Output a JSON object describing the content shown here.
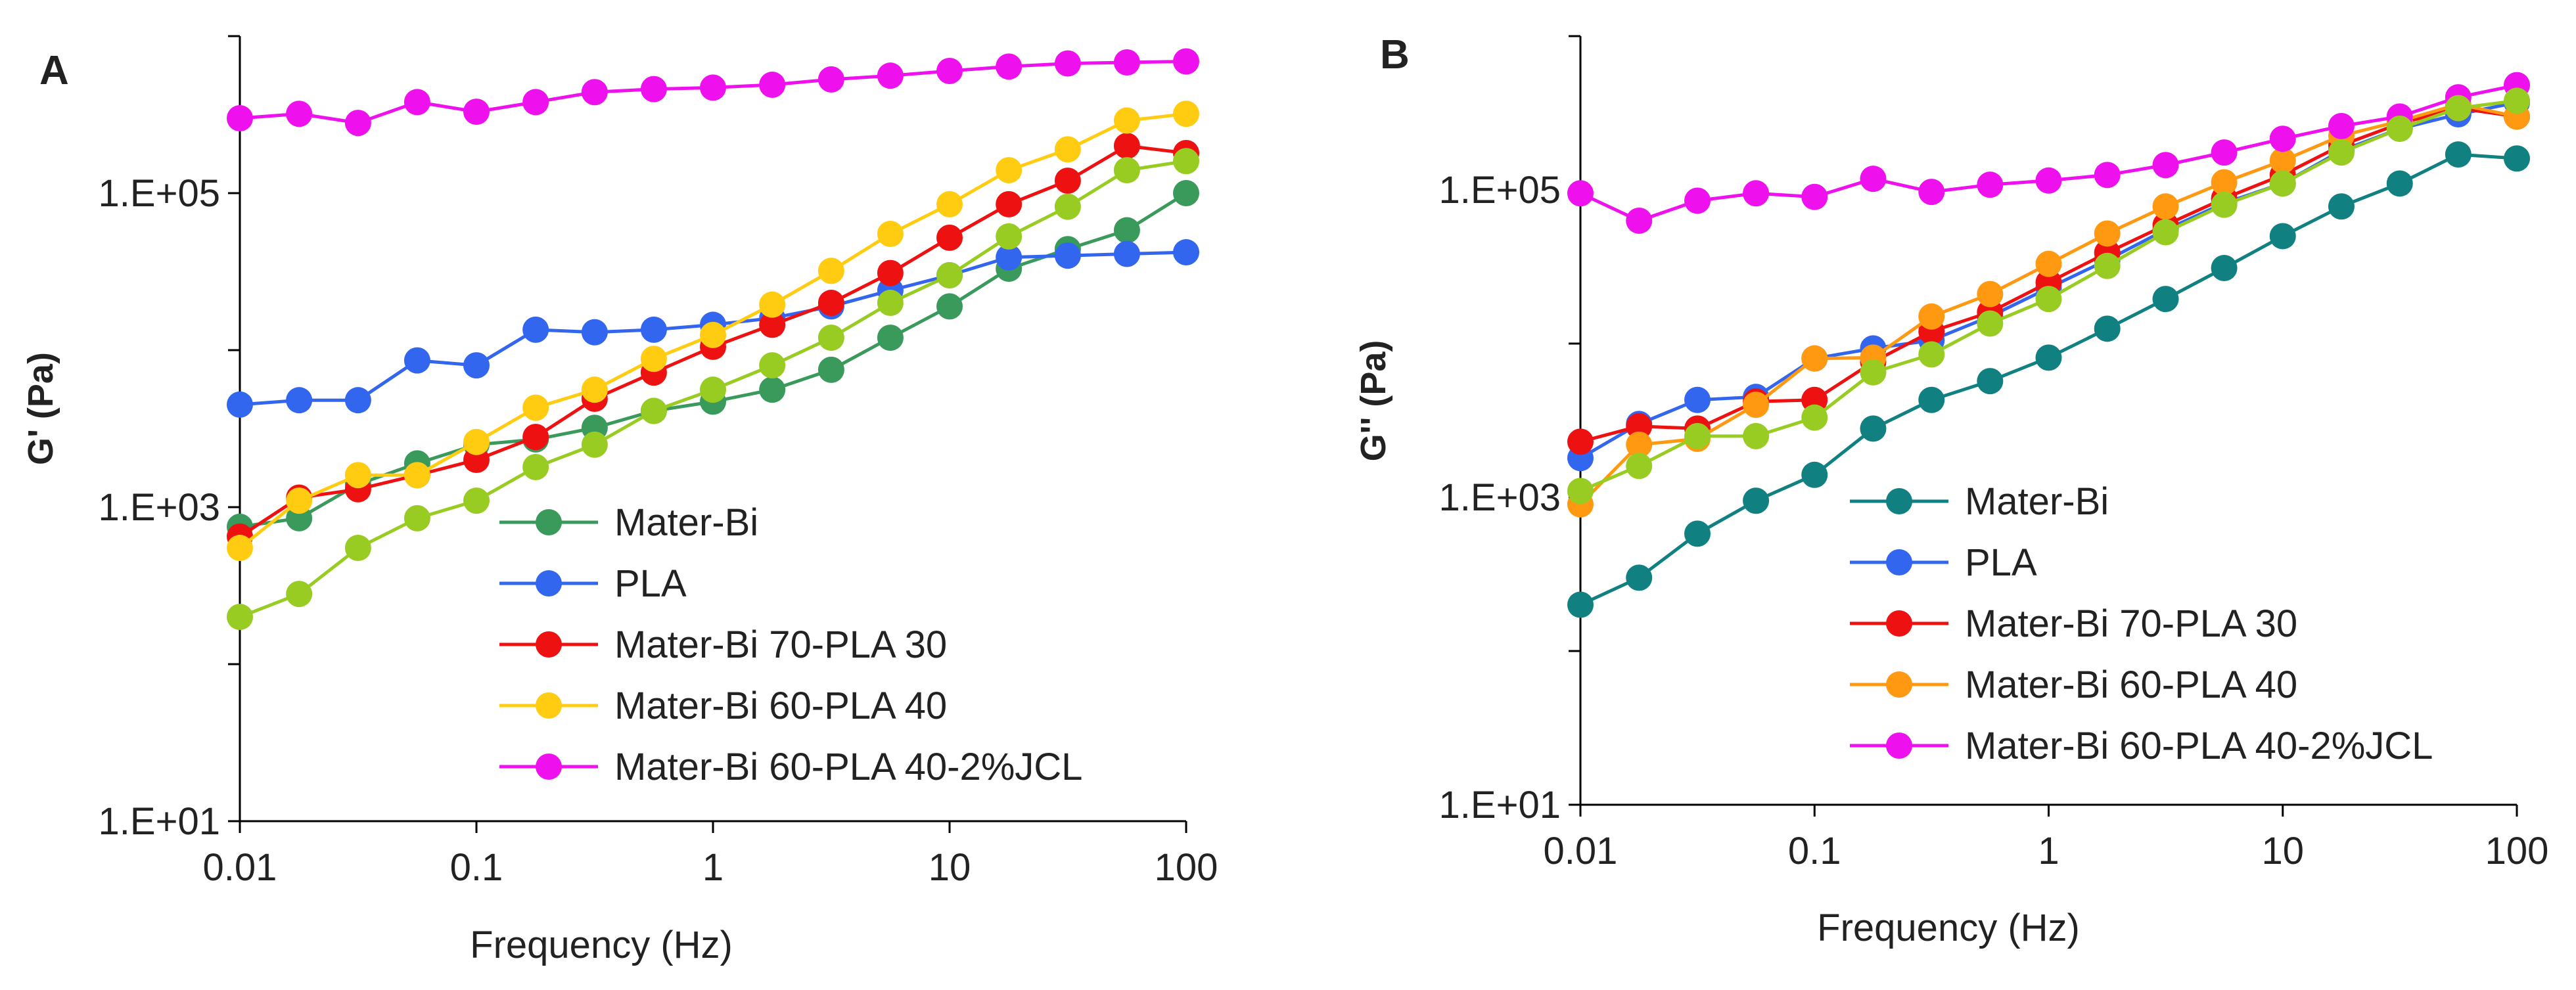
{
  "figure": {
    "background": "#ffffff"
  },
  "chart_data": [
    {
      "type": "line",
      "panel_label": "A",
      "title": "",
      "xlabel": "Frequency (Hz)",
      "ylabel": "G' (Pa)",
      "xscale": "log",
      "yscale": "log",
      "xlim": [
        0.01,
        100
      ],
      "ylim": [
        10,
        1000000
      ],
      "x_ticks": [
        0.01,
        0.1,
        1,
        10,
        100
      ],
      "x_tick_labels": [
        "0.01",
        "0.1",
        "1",
        "10",
        "100"
      ],
      "y_ticks": [
        10,
        1000,
        100000
      ],
      "y_tick_labels": [
        "1.E+01",
        "1.E+03",
        "1.E+05"
      ],
      "legend_position": "bottom-right",
      "x": [
        0.01,
        0.0178,
        0.0316,
        0.0562,
        0.1,
        0.178,
        0.316,
        0.562,
        1,
        1.78,
        3.16,
        5.62,
        10,
        17.8,
        31.6,
        56.2,
        100
      ],
      "series": [
        {
          "name": "Mater-Bi",
          "color": "#3a9a5c",
          "values": [
            750,
            850,
            1400,
            1900,
            2500,
            2700,
            3200,
            4100,
            4700,
            5600,
            7500,
            12000,
            19000,
            33000,
            44000,
            58000,
            100000
          ]
        },
        {
          "name": "PLA",
          "color": "#3366ee",
          "values": [
            4500,
            4800,
            4800,
            8600,
            8000,
            13500,
            13000,
            13500,
            14500,
            16000,
            19000,
            24000,
            30000,
            39000,
            40000,
            41000,
            42000
          ]
        },
        {
          "name": "Mater-Bi 70-PLA 30",
          "color": "#ee1111",
          "values": [
            650,
            1150,
            1300,
            1600,
            2000,
            2800,
            4900,
            7200,
            10500,
            14500,
            20000,
            31000,
            52000,
            85000,
            120000,
            200000,
            180000
          ]
        },
        {
          "name": "Mater-Bi 60-PLA 40",
          "color": "#ffcc11",
          "values": [
            550,
            1100,
            1600,
            1600,
            2600,
            4300,
            5600,
            8800,
            12500,
            19500,
            32000,
            55000,
            85000,
            140000,
            190000,
            290000,
            320000
          ]
        },
        {
          "name": "Mater-Bi 60-PLA 40-2%JCL",
          "color": "#ee11ee",
          "values": [
            300000,
            320000,
            280000,
            380000,
            330000,
            380000,
            440000,
            460000,
            470000,
            490000,
            530000,
            560000,
            600000,
            640000,
            670000,
            680000,
            690000
          ]
        },
        {
          "name": "",
          "color": "#99cc22",
          "values": [
            200,
            280,
            550,
            850,
            1100,
            1800,
            2500,
            4100,
            5600,
            8000,
            12000,
            20000,
            30000,
            53000,
            82000,
            140000,
            160000
          ]
        }
      ]
    },
    {
      "type": "line",
      "panel_label": "B",
      "title": "",
      "xlabel": "Frequency (Hz)",
      "ylabel": "G'' (Pa)",
      "xscale": "log",
      "yscale": "log",
      "xlim": [
        0.01,
        100
      ],
      "ylim": [
        10,
        1000000
      ],
      "x_ticks": [
        0.01,
        0.1,
        1,
        10,
        100
      ],
      "x_tick_labels": [
        "0.01",
        "0.1",
        "1",
        "10",
        "100"
      ],
      "y_ticks": [
        10,
        1000,
        100000
      ],
      "y_tick_labels": [
        "1.E+01",
        "1.E+03",
        "1.E+05"
      ],
      "legend_position": "bottom-right",
      "x": [
        0.01,
        0.0178,
        0.0316,
        0.0562,
        0.1,
        0.178,
        0.316,
        0.562,
        1,
        1.78,
        3.16,
        5.62,
        10,
        17.8,
        31.6,
        56.2,
        100
      ],
      "series": [
        {
          "name": "Mater-Bi",
          "color": "#118080",
          "values": [
            200,
            300,
            580,
            950,
            1400,
            2800,
            4300,
            5700,
            8100,
            12500,
            19500,
            31000,
            50000,
            78000,
            110000,
            170000,
            160000
          ]
        },
        {
          "name": "PLA",
          "color": "#3366ee",
          "values": [
            1800,
            3000,
            4300,
            4500,
            8000,
            9300,
            10500,
            15000,
            23000,
            35000,
            55000,
            82000,
            110000,
            180000,
            250000,
            310000,
            370000
          ]
        },
        {
          "name": "Mater-Bi 70-PLA 30",
          "color": "#ee1111",
          "values": [
            2300,
            2900,
            2800,
            4200,
            4300,
            7600,
            12000,
            16000,
            25000,
            39000,
            59000,
            88000,
            125000,
            195000,
            270000,
            340000,
            300000
          ]
        },
        {
          "name": "Mater-Bi 60-PLA 40",
          "color": "#ff9911",
          "values": [
            900,
            2200,
            2400,
            4000,
            8000,
            8100,
            15000,
            21000,
            33000,
            52000,
            78000,
            112000,
            155000,
            225000,
            280000,
            360000,
            300000
          ]
        },
        {
          "name": "Mater-Bi 60-PLA 40-2%JCL",
          "color": "#ee11ee",
          "values": [
            95000,
            63000,
            85000,
            95000,
            90000,
            118000,
            97000,
            108000,
            115000,
            125000,
            145000,
            175000,
            215000,
            260000,
            300000,
            400000,
            480000
          ]
        },
        {
          "name": "",
          "color": "#99cc22",
          "values": [
            1100,
            1600,
            2500,
            2500,
            3300,
            6500,
            8500,
            13500,
            19500,
            32000,
            53000,
            80000,
            110000,
            175000,
            250000,
            340000,
            380000
          ]
        }
      ]
    }
  ]
}
